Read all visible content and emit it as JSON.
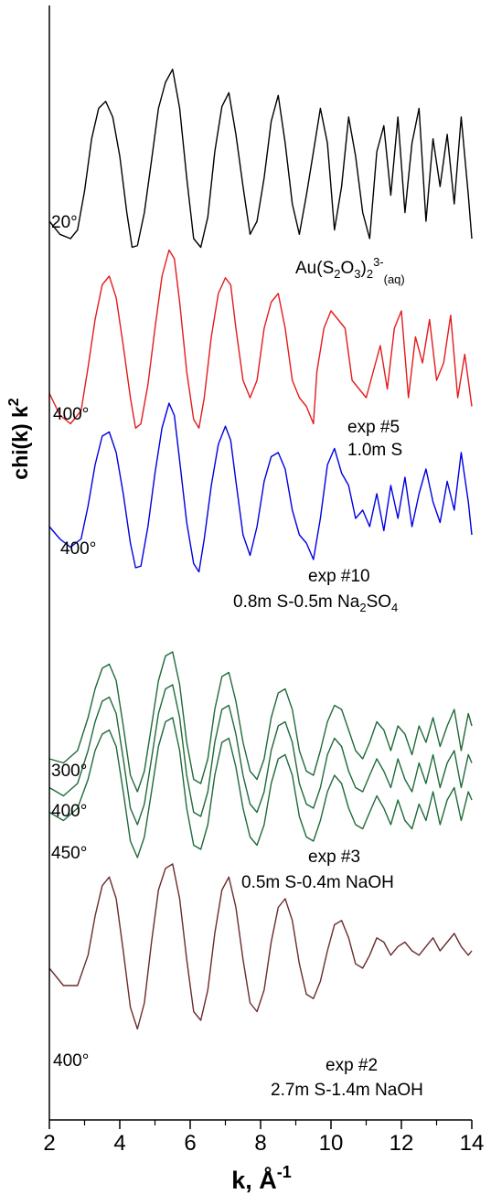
{
  "chart_data": {
    "type": "line",
    "xlabel": {
      "text": "k, Å",
      "sup": "-1"
    },
    "ylabel": {
      "text": "chi(k) k",
      "sup": "2"
    },
    "xlim": [
      2,
      14
    ],
    "xticks": [
      2,
      4,
      6,
      8,
      10,
      12,
      14
    ],
    "xtick_labels": [
      "2",
      "4",
      "6",
      "8",
      "10",
      "12",
      "14"
    ],
    "legend": "none",
    "grid": false,
    "stacked_offsets": true,
    "series": [
      {
        "id": "au-complex-20",
        "color": "#000000",
        "offset": 0,
        "x": [
          2,
          2.3,
          2.6,
          2.8,
          3.0,
          3.2,
          3.4,
          3.6,
          3.8,
          4.0,
          4.2,
          4.35,
          4.5,
          4.7,
          4.9,
          5.1,
          5.3,
          5.5,
          5.7,
          5.9,
          6.1,
          6.3,
          6.5,
          6.7,
          6.9,
          7.1,
          7.3,
          7.5,
          7.7,
          7.9,
          8.1,
          8.3,
          8.5,
          8.7,
          8.9,
          9.1,
          9.3,
          9.5,
          9.7,
          9.9,
          10.1,
          10.3,
          10.5,
          10.7,
          10.9,
          11.1,
          11.3,
          11.5,
          11.7,
          11.9,
          12.1,
          12.3,
          12.5,
          12.7,
          12.9,
          13.1,
          13.3,
          13.5,
          13.7,
          13.9,
          14.0
        ],
        "y": [
          -0.6,
          -0.75,
          -0.8,
          -0.7,
          -0.25,
          0.35,
          0.7,
          0.78,
          0.6,
          0.15,
          -0.5,
          -0.9,
          -0.88,
          -0.5,
          0.1,
          0.7,
          1.0,
          1.15,
          0.7,
          -0.1,
          -0.8,
          -0.9,
          -0.55,
          0.2,
          0.72,
          0.88,
          0.4,
          -0.2,
          -0.75,
          -0.6,
          -0.1,
          0.55,
          0.85,
          0.3,
          -0.4,
          -0.75,
          -0.3,
          0.2,
          0.7,
          0.3,
          -0.7,
          -0.2,
          0.6,
          0.15,
          -0.5,
          -0.8,
          0.2,
          0.5,
          -0.3,
          0.6,
          -0.5,
          0.3,
          0.7,
          -0.6,
          0.35,
          -0.2,
          0.4,
          -0.4,
          0.6,
          -0.3,
          -0.8
        ]
      },
      {
        "id": "exp5-400",
        "color": "#e41a1c",
        "offset": 0,
        "x": [
          2,
          2.3,
          2.6,
          2.9,
          3.1,
          3.3,
          3.5,
          3.7,
          3.9,
          4.1,
          4.3,
          4.45,
          4.6,
          4.8,
          5.0,
          5.2,
          5.4,
          5.55,
          5.7,
          5.9,
          6.1,
          6.25,
          6.4,
          6.6,
          6.8,
          7.0,
          7.15,
          7.3,
          7.5,
          7.7,
          7.9,
          8.1,
          8.3,
          8.5,
          8.7,
          8.9,
          9.1,
          9.3,
          9.5,
          9.6,
          9.8,
          10.0,
          10.2,
          10.4,
          10.6,
          10.8,
          11.0,
          11.2,
          11.4,
          11.6,
          11.8,
          12.0,
          12.2,
          12.4,
          12.6,
          12.8,
          13.0,
          13.2,
          13.4,
          13.6,
          13.8,
          14.0
        ],
        "y": [
          -0.55,
          -0.8,
          -0.9,
          -0.75,
          -0.25,
          0.3,
          0.7,
          0.8,
          0.55,
          0.0,
          -0.6,
          -0.95,
          -0.9,
          -0.45,
          0.2,
          0.8,
          1.1,
          1.0,
          0.5,
          -0.3,
          -0.85,
          -0.95,
          -0.6,
          0.1,
          0.6,
          0.78,
          0.7,
          0.2,
          -0.4,
          -0.6,
          -0.4,
          0.2,
          0.5,
          0.6,
          0.2,
          -0.4,
          -0.6,
          -0.7,
          -0.9,
          -0.3,
          0.2,
          0.4,
          0.3,
          0.2,
          -0.4,
          -0.5,
          -0.6,
          -0.3,
          0.0,
          -0.5,
          0.2,
          0.4,
          -0.6,
          0.1,
          -0.2,
          0.3,
          -0.4,
          -0.2,
          0.35,
          -0.6,
          -0.1,
          -0.7
        ]
      },
      {
        "id": "exp10-400",
        "color": "#0000e0",
        "offset": 0,
        "x": [
          2,
          2.3,
          2.6,
          2.9,
          3.1,
          3.3,
          3.5,
          3.7,
          3.9,
          4.1,
          4.3,
          4.45,
          4.6,
          4.8,
          5.0,
          5.2,
          5.4,
          5.55,
          5.7,
          5.9,
          6.1,
          6.25,
          6.4,
          6.6,
          6.8,
          7.0,
          7.15,
          7.3,
          7.5,
          7.7,
          7.9,
          8.1,
          8.3,
          8.5,
          8.7,
          8.9,
          9.1,
          9.3,
          9.5,
          9.7,
          9.9,
          10.1,
          10.3,
          10.5,
          10.7,
          10.9,
          11.1,
          11.3,
          11.5,
          11.7,
          11.9,
          12.1,
          12.3,
          12.5,
          12.7,
          12.9,
          13.1,
          13.3,
          13.5,
          13.7,
          13.9,
          14.0
        ],
        "y": [
          -0.4,
          -0.55,
          -0.65,
          -0.55,
          -0.15,
          0.35,
          0.7,
          0.75,
          0.5,
          0.0,
          -0.6,
          -0.9,
          -0.88,
          -0.4,
          0.25,
          0.8,
          1.1,
          0.95,
          0.4,
          -0.35,
          -0.85,
          -0.95,
          -0.55,
          0.1,
          0.6,
          0.82,
          0.65,
          0.15,
          -0.5,
          -0.75,
          -0.4,
          0.15,
          0.45,
          0.5,
          0.3,
          -0.2,
          -0.5,
          -0.6,
          -0.8,
          -0.3,
          0.35,
          0.55,
          0.25,
          0.1,
          -0.3,
          -0.2,
          -0.4,
          0.0,
          -0.45,
          0.1,
          -0.3,
          0.2,
          -0.4,
          0.0,
          0.3,
          -0.1,
          -0.35,
          0.15,
          -0.2,
          0.5,
          -0.1,
          -0.5
        ]
      },
      {
        "id": "exp3-300",
        "color": "#1f6b3a",
        "offset": 0,
        "x": [
          2,
          2.4,
          2.8,
          3.1,
          3.3,
          3.5,
          3.7,
          3.9,
          4.1,
          4.3,
          4.5,
          4.7,
          4.9,
          5.1,
          5.3,
          5.5,
          5.7,
          5.9,
          6.1,
          6.3,
          6.5,
          6.7,
          6.9,
          7.1,
          7.3,
          7.5,
          7.7,
          7.9,
          8.1,
          8.3,
          8.5,
          8.7,
          8.9,
          9.1,
          9.3,
          9.5,
          9.7,
          9.9,
          10.1,
          10.3,
          10.5,
          10.7,
          10.9,
          11.1,
          11.3,
          11.5,
          11.7,
          11.9,
          12.1,
          12.3,
          12.5,
          12.7,
          12.9,
          13.1,
          13.3,
          13.5,
          13.7,
          13.9,
          14.0
        ],
        "y": [
          -0.3,
          -0.35,
          -0.2,
          0.2,
          0.55,
          0.8,
          0.85,
          0.65,
          0.1,
          -0.5,
          -0.7,
          -0.45,
          0.1,
          0.65,
          0.95,
          1.0,
          0.6,
          -0.1,
          -0.55,
          -0.6,
          -0.3,
          0.3,
          0.7,
          0.75,
          0.4,
          -0.1,
          -0.45,
          -0.55,
          -0.3,
          0.2,
          0.5,
          0.55,
          0.3,
          -0.2,
          -0.45,
          -0.5,
          -0.2,
          0.15,
          0.35,
          0.3,
          0.05,
          -0.2,
          -0.3,
          -0.1,
          0.15,
          0.05,
          -0.2,
          0.1,
          0.0,
          -0.25,
          0.1,
          -0.1,
          0.2,
          -0.15,
          0.1,
          0.3,
          -0.2,
          0.25,
          0.1
        ]
      },
      {
        "id": "exp3-400",
        "color": "#1f6b3a",
        "offset": -0.35,
        "x": [
          2,
          2.4,
          2.8,
          3.1,
          3.3,
          3.5,
          3.7,
          3.9,
          4.1,
          4.3,
          4.5,
          4.7,
          4.9,
          5.1,
          5.3,
          5.5,
          5.7,
          5.9,
          6.1,
          6.3,
          6.5,
          6.7,
          6.9,
          7.1,
          7.3,
          7.5,
          7.7,
          7.9,
          8.1,
          8.3,
          8.5,
          8.7,
          8.9,
          9.1,
          9.3,
          9.5,
          9.7,
          9.9,
          10.1,
          10.3,
          10.5,
          10.7,
          10.9,
          11.1,
          11.3,
          11.5,
          11.7,
          11.9,
          12.1,
          12.3,
          12.5,
          12.7,
          12.9,
          13.1,
          13.3,
          13.5,
          13.7,
          13.9,
          14.0
        ],
        "y": [
          -0.3,
          -0.4,
          -0.25,
          0.15,
          0.5,
          0.75,
          0.8,
          0.6,
          0.05,
          -0.55,
          -0.75,
          -0.5,
          0.05,
          0.6,
          0.9,
          0.95,
          0.55,
          -0.15,
          -0.6,
          -0.65,
          -0.35,
          0.25,
          0.65,
          0.7,
          0.35,
          -0.15,
          -0.5,
          -0.6,
          -0.35,
          0.15,
          0.45,
          0.5,
          0.25,
          -0.25,
          -0.5,
          -0.55,
          -0.3,
          0.1,
          0.3,
          0.2,
          -0.1,
          -0.3,
          -0.35,
          -0.15,
          0.05,
          -0.1,
          -0.3,
          0.05,
          -0.2,
          -0.35,
          0.0,
          -0.25,
          0.1,
          -0.3,
          0.0,
          0.15,
          -0.3,
          0.1,
          0.0
        ]
      },
      {
        "id": "exp3-450",
        "color": "#1f6b3a",
        "offset": -0.7,
        "x": [
          2,
          2.4,
          2.8,
          3.1,
          3.3,
          3.5,
          3.7,
          3.9,
          4.1,
          4.3,
          4.5,
          4.7,
          4.9,
          5.1,
          5.3,
          5.5,
          5.7,
          5.9,
          6.1,
          6.3,
          6.5,
          6.7,
          6.9,
          7.1,
          7.3,
          7.5,
          7.7,
          7.9,
          8.1,
          8.3,
          8.5,
          8.7,
          8.9,
          9.1,
          9.3,
          9.5,
          9.7,
          9.9,
          10.1,
          10.3,
          10.5,
          10.7,
          10.9,
          11.1,
          11.3,
          11.5,
          11.7,
          11.9,
          12.1,
          12.3,
          12.5,
          12.7,
          12.9,
          13.1,
          13.3,
          13.5,
          13.7,
          13.9,
          14.0
        ],
        "y": [
          -0.25,
          -0.35,
          -0.2,
          0.15,
          0.5,
          0.7,
          0.75,
          0.55,
          0.0,
          -0.6,
          -0.8,
          -0.55,
          0.0,
          0.55,
          0.85,
          0.9,
          0.5,
          -0.2,
          -0.65,
          -0.7,
          -0.4,
          0.2,
          0.6,
          0.65,
          0.3,
          -0.2,
          -0.55,
          -0.65,
          -0.4,
          0.1,
          0.4,
          0.45,
          0.2,
          -0.3,
          -0.55,
          -0.6,
          -0.35,
          0.0,
          0.2,
          0.1,
          -0.2,
          -0.4,
          -0.45,
          -0.25,
          -0.05,
          -0.2,
          -0.4,
          -0.1,
          -0.35,
          -0.45,
          -0.15,
          -0.35,
          0.0,
          -0.4,
          -0.1,
          0.05,
          -0.35,
          0.0,
          -0.1
        ]
      },
      {
        "id": "exp2-400",
        "color": "#6b2b2b",
        "offset": 0,
        "x": [
          2,
          2.4,
          2.8,
          3.1,
          3.3,
          3.5,
          3.7,
          3.9,
          4.1,
          4.3,
          4.5,
          4.7,
          4.9,
          5.1,
          5.3,
          5.5,
          5.7,
          5.9,
          6.1,
          6.3,
          6.5,
          6.7,
          6.9,
          7.1,
          7.3,
          7.5,
          7.7,
          7.9,
          8.1,
          8.3,
          8.5,
          8.7,
          8.9,
          9.1,
          9.3,
          9.5,
          9.7,
          9.9,
          10.1,
          10.3,
          10.5,
          10.7,
          10.9,
          11.1,
          11.3,
          11.5,
          11.7,
          11.9,
          12.1,
          12.3,
          12.5,
          12.7,
          12.9,
          13.1,
          13.3,
          13.5,
          13.7,
          13.9,
          14.0
        ],
        "y": [
          -0.2,
          -0.4,
          -0.4,
          -0.05,
          0.4,
          0.75,
          0.85,
          0.6,
          0.0,
          -0.65,
          -0.9,
          -0.6,
          0.1,
          0.7,
          0.95,
          1.0,
          0.6,
          -0.1,
          -0.7,
          -0.8,
          -0.45,
          0.2,
          0.7,
          0.85,
          0.5,
          -0.1,
          -0.6,
          -0.7,
          -0.45,
          0.1,
          0.5,
          0.6,
          0.35,
          -0.15,
          -0.5,
          -0.55,
          -0.35,
          0.0,
          0.3,
          0.35,
          0.15,
          -0.15,
          -0.2,
          -0.05,
          0.15,
          0.1,
          -0.05,
          0.05,
          0.1,
          0.0,
          -0.05,
          0.05,
          0.15,
          0.0,
          0.1,
          0.2,
          0.05,
          -0.05,
          0.0
        ]
      }
    ],
    "annotations": [
      {
        "id": "temp-20",
        "text": "20°"
      },
      {
        "id": "species-au",
        "base": "Au(S",
        "sub1": "2",
        "mid1": "O",
        "sub2": "3",
        "mid2": ")",
        "sub3": "2",
        "sup": "3-",
        "sub4": "(aq)"
      },
      {
        "id": "temp-400-red",
        "text": "400°"
      },
      {
        "id": "exp5-name",
        "text": "exp #5"
      },
      {
        "id": "exp5-comp",
        "text": "1.0m S"
      },
      {
        "id": "temp-400-blue",
        "text": "400°"
      },
      {
        "id": "exp10-name",
        "text": "exp #10"
      },
      {
        "id": "exp10-comp",
        "base": "0.8m S-0.5m Na",
        "sub1": "2",
        "mid1": "SO",
        "sub2": "4"
      },
      {
        "id": "temp-300-green",
        "text": "300°"
      },
      {
        "id": "temp-400-green",
        "text": "400°"
      },
      {
        "id": "temp-450-green",
        "text": "450°"
      },
      {
        "id": "exp3-name",
        "text": "exp #3"
      },
      {
        "id": "exp3-comp",
        "text": "0.5m S-0.4m NaOH"
      },
      {
        "id": "temp-400-brown",
        "text": "400°"
      },
      {
        "id": "exp2-name",
        "text": "exp #2"
      },
      {
        "id": "exp2-comp",
        "text": "2.7m S-1.4m NaOH"
      }
    ]
  }
}
